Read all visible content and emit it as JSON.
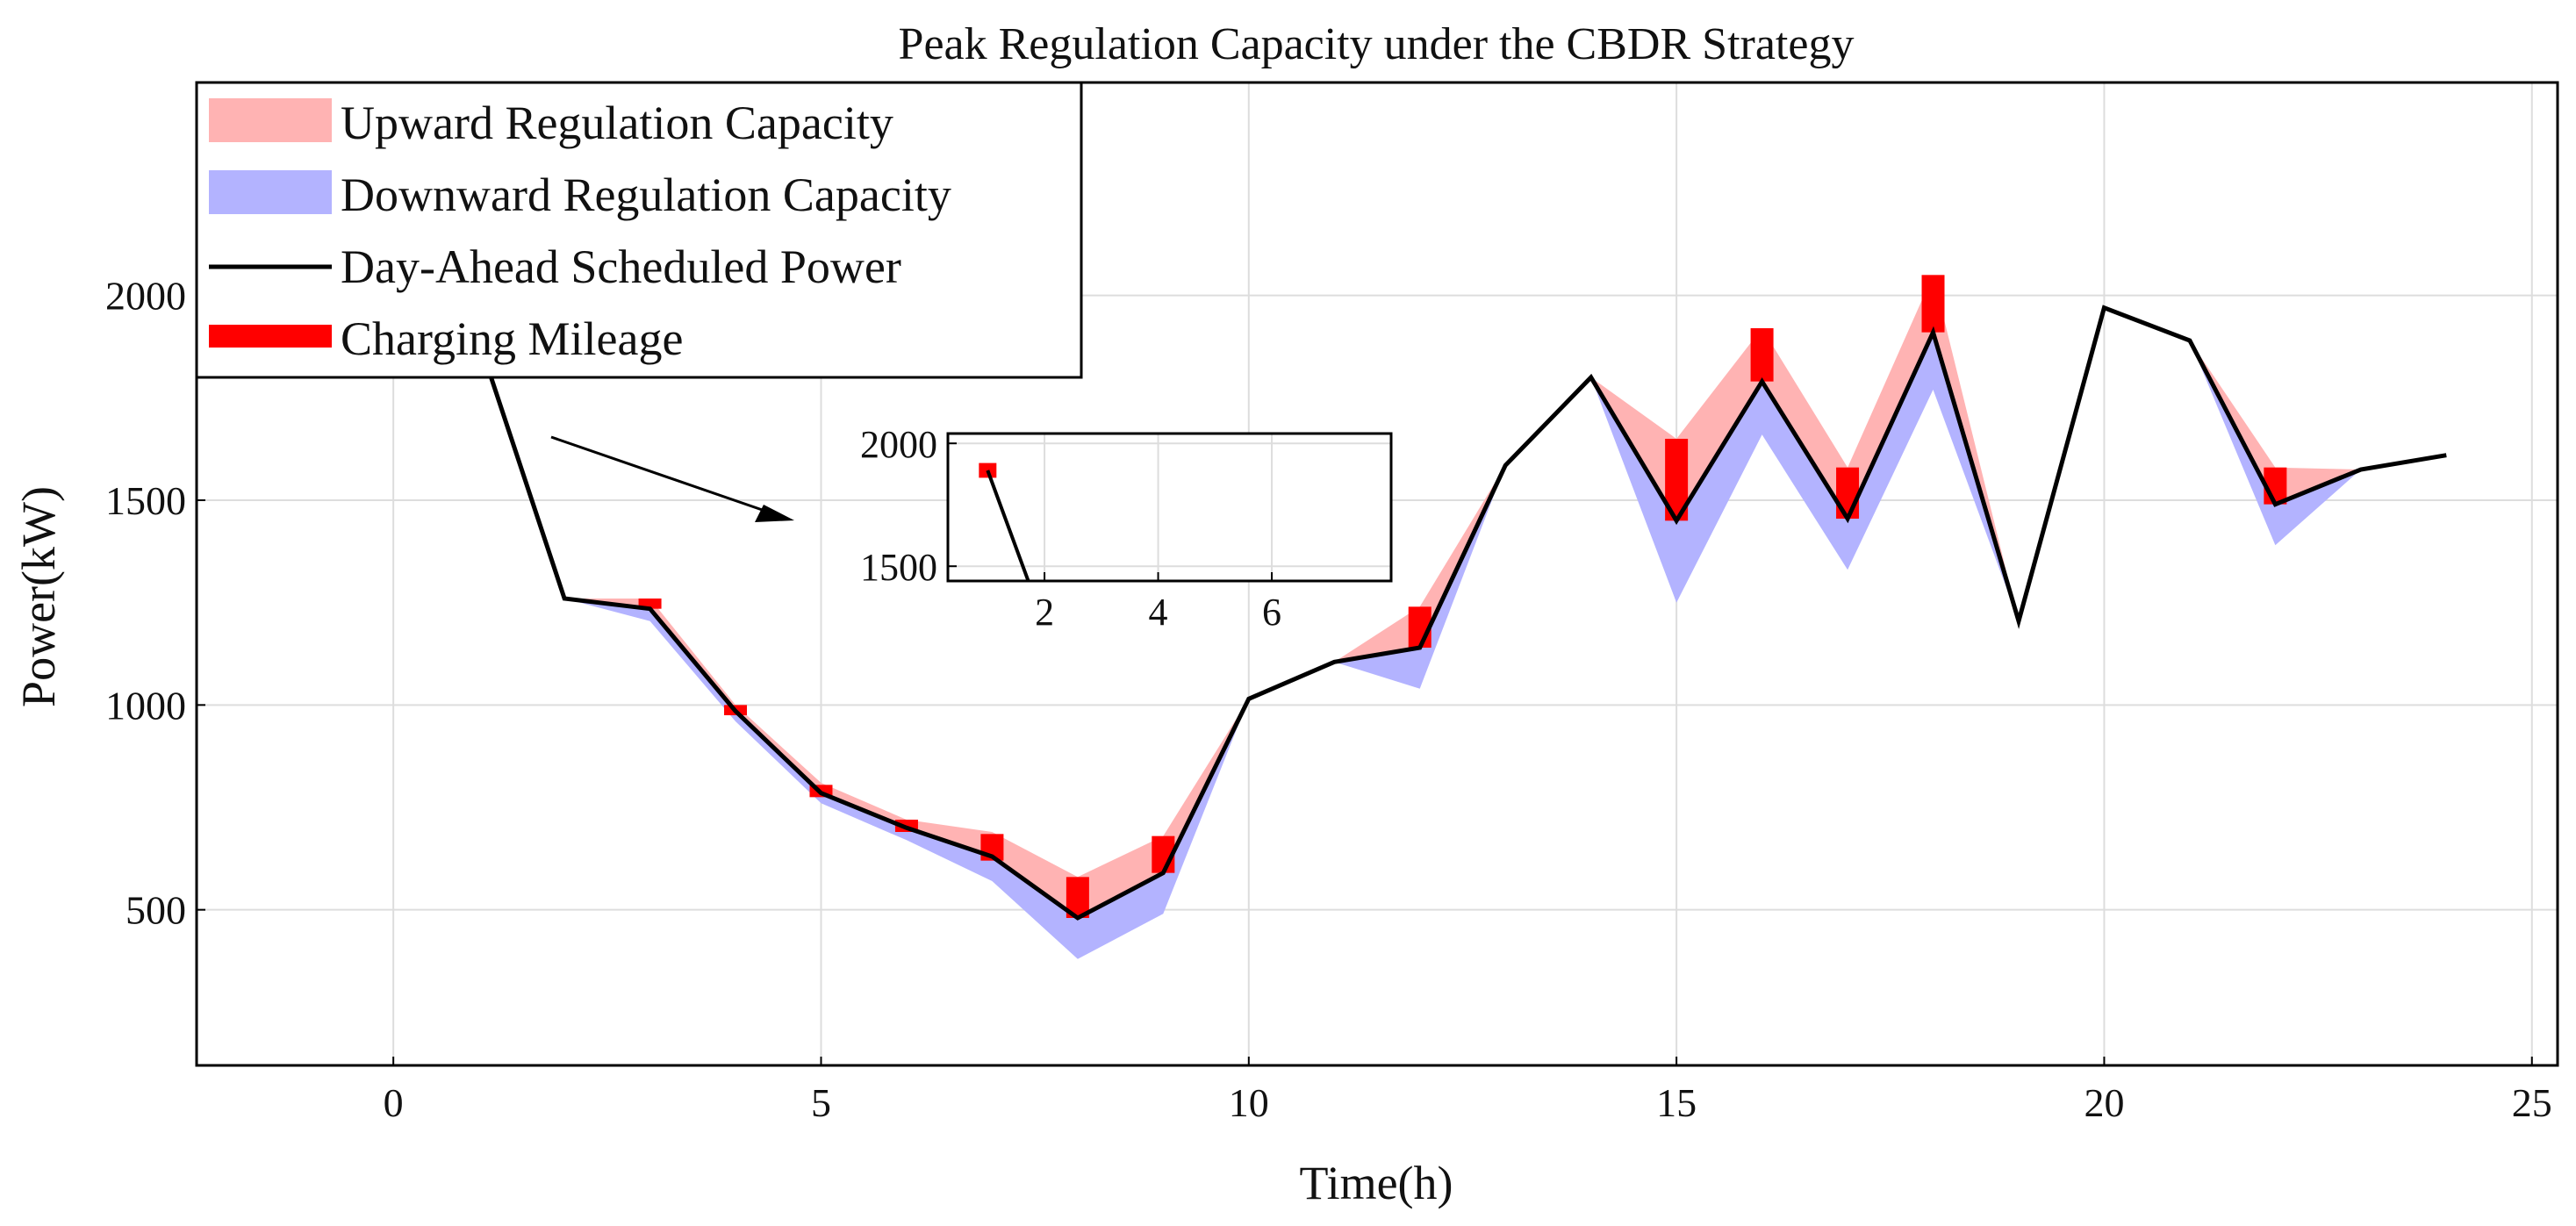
{
  "chart_data": {
    "type": "area",
    "title": "Peak Regulation Capacity under the CBDR Strategy",
    "xlabel": "Time(h)",
    "ylabel": "Power(kW)",
    "xlim": [
      -2.3,
      25.3
    ],
    "ylim": [
      120,
      2520
    ],
    "xticks": [
      0,
      5,
      10,
      15,
      20,
      25
    ],
    "yticks": [
      500,
      1000,
      1500,
      2000
    ],
    "grid": true,
    "legend": {
      "position": "top-left",
      "entries": [
        {
          "label": "Upward Regulation Capacity",
          "color": "#ffb3b3"
        },
        {
          "label": "Downward Regulation Capacity",
          "color": "#b3b3ff"
        },
        {
          "label": "Day-Ahead Scheduled Power",
          "color": "#000000"
        },
        {
          "label": "Charging Mileage",
          "color": "#ff0000"
        }
      ]
    },
    "x": [
      1,
      2,
      3,
      4,
      5,
      6,
      7,
      8,
      9,
      10,
      11,
      12,
      13,
      14,
      15,
      16,
      17,
      18,
      19,
      20,
      21,
      22,
      23,
      24
    ],
    "series": [
      {
        "name": "Day-Ahead Scheduled Power",
        "values": [
          1890,
          1260,
          1235,
          985,
          785,
          700,
          630,
          480,
          590,
          1015,
          1105,
          1140,
          1585,
          1800,
          1450,
          1790,
          1455,
          1910,
          1205,
          1970,
          1890,
          1490,
          1575,
          1610
        ]
      },
      {
        "name": "Upward Regulation Capacity (upper bound)",
        "values": [
          1890,
          1260,
          1260,
          1000,
          810,
          720,
          690,
          580,
          680,
          1015,
          1105,
          1240,
          1585,
          1800,
          1650,
          1920,
          1580,
          2050,
          1205,
          1970,
          1890,
          1580,
          1575,
          1610
        ]
      },
      {
        "name": "Downward Regulation Capacity (lower bound)",
        "values": [
          1890,
          1260,
          1205,
          960,
          760,
          670,
          570,
          380,
          490,
          1015,
          1105,
          1040,
          1585,
          1800,
          1250,
          1660,
          1330,
          1770,
          1205,
          1970,
          1890,
          1390,
          1575,
          1610
        ]
      },
      {
        "name": "Charging Mileage",
        "x": [
          1,
          3,
          4,
          5,
          6,
          7,
          8,
          9,
          12,
          15,
          16,
          17,
          18,
          22
        ],
        "low": [
          1860,
          1235,
          975,
          775,
          690,
          620,
          480,
          590,
          1140,
          1450,
          1790,
          1455,
          1910,
          1490
        ],
        "high": [
          1920,
          1260,
          1000,
          805,
          720,
          685,
          580,
          680,
          1240,
          1650,
          1920,
          1580,
          2050,
          1580
        ]
      }
    ],
    "annotation": "arrow pointing to inset",
    "inset": {
      "xlim": [
        0.3,
        8.1
      ],
      "ylim": [
        1440,
        2040
      ],
      "xticks": [
        2,
        4,
        6
      ],
      "yticks": [
        1500,
        2000
      ]
    }
  }
}
